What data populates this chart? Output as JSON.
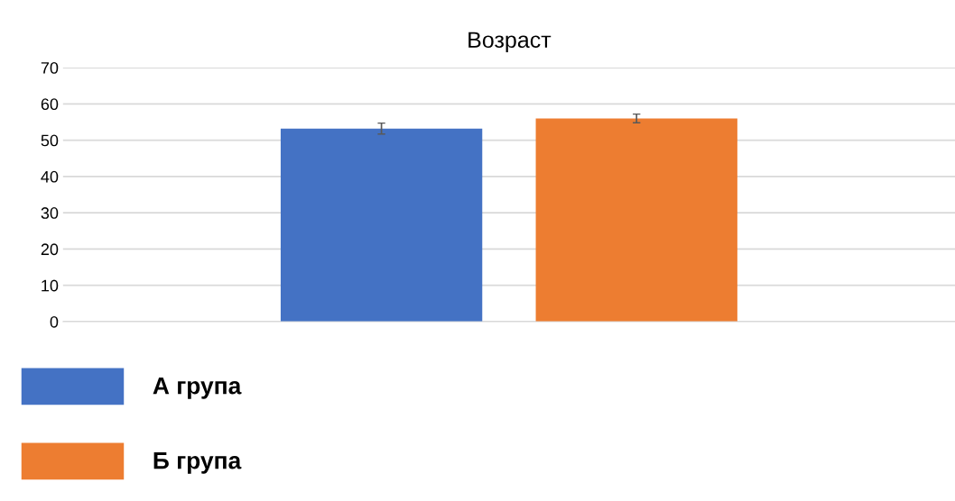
{
  "chart_data": {
    "type": "bar",
    "title": "Возраст",
    "categories": [
      null
    ],
    "series": [
      {
        "name": "А група",
        "color": "#4472c4",
        "values": [
          53.2
        ],
        "errors": [
          1.5
        ]
      },
      {
        "name": "Б група",
        "color": "#ed7d31",
        "values": [
          56.0
        ],
        "errors": [
          1.2
        ]
      }
    ],
    "ylim": [
      0,
      70
    ],
    "yticks": [
      0,
      10,
      20,
      30,
      40,
      50,
      60,
      70
    ],
    "grid": "y",
    "legend": "bottom left"
  }
}
